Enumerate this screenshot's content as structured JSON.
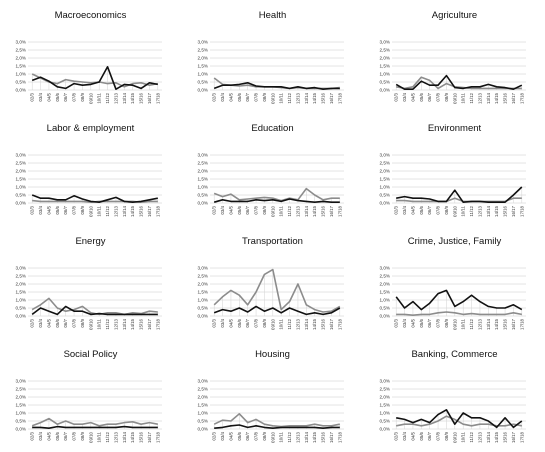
{
  "colors": {
    "series_a": "#111111",
    "series_b": "#8c8c8c",
    "grid": "#c8c8c8",
    "connector": "#d2d2d2"
  },
  "chart_data": [
    {
      "type": "line",
      "title": "Macroeconomics",
      "x": [
        "02/3",
        "03/4",
        "04/5",
        "05/6",
        "06/7",
        "07/8",
        "08/9",
        "09/10",
        "10/11",
        "11/12",
        "12/13",
        "13/14",
        "14/15",
        "15/16",
        "16/17",
        "17/18"
      ],
      "ylim": [
        0,
        3.0
      ],
      "y_ticks": [
        "0,0%",
        "0,5%",
        "1,0%",
        "1,5%",
        "2,0%",
        "2,5%",
        "3,0%"
      ],
      "series": [
        {
          "values": [
            0.6,
            0.8,
            0.55,
            0.2,
            0.1,
            0.4,
            0.3,
            0.35,
            0.5,
            1.45,
            0.05,
            0.35,
            0.3,
            0.1,
            0.45,
            0.35
          ]
        },
        {
          "values": [
            1.0,
            0.75,
            0.5,
            0.4,
            0.65,
            0.55,
            0.5,
            0.45,
            0.5,
            0.4,
            0.45,
            0.2,
            0.4,
            0.45,
            0.3,
            0.4
          ]
        }
      ]
    },
    {
      "type": "line",
      "title": "Health",
      "x": [
        "02/3",
        "03/4",
        "04/5",
        "05/6",
        "06/7",
        "07/8",
        "08/9",
        "09/10",
        "10/11",
        "11/12",
        "12/13",
        "13/14",
        "14/15",
        "15/16",
        "16/17",
        "17/18"
      ],
      "ylim": [
        0,
        3.0
      ],
      "y_ticks": [
        "0,0%",
        "0,5%",
        "1,0%",
        "1,5%",
        "2,0%",
        "2,5%",
        "3,0%"
      ],
      "series": [
        {
          "values": [
            0.1,
            0.3,
            0.3,
            0.35,
            0.45,
            0.25,
            0.2,
            0.2,
            0.2,
            0.1,
            0.2,
            0.1,
            0.15,
            0.05,
            0.1,
            0.1
          ]
        },
        {
          "values": [
            0.75,
            0.35,
            0.3,
            0.25,
            0.3,
            0.2,
            0.2,
            0.2,
            0.15,
            0.1,
            0.15,
            0.1,
            0.1,
            0.1,
            0.1,
            0.15
          ]
        }
      ]
    },
    {
      "type": "line",
      "title": "Agriculture",
      "x": [
        "02/3",
        "03/4",
        "04/5",
        "05/6",
        "06/7",
        "07/8",
        "08/9",
        "09/10",
        "10/11",
        "11/12",
        "12/13",
        "13/14",
        "14/15",
        "15/16",
        "16/17",
        "17/18"
      ],
      "ylim": [
        0,
        3.0
      ],
      "y_ticks": [
        "0,0%",
        "0,5%",
        "1,0%",
        "1,5%",
        "2,0%",
        "2,5%",
        "3,0%"
      ],
      "series": [
        {
          "values": [
            0.35,
            0.05,
            0.05,
            0.55,
            0.3,
            0.3,
            0.9,
            0.15,
            0.1,
            0.2,
            0.2,
            0.35,
            0.2,
            0.15,
            0.05,
            0.3
          ]
        },
        {
          "values": [
            0.2,
            0.1,
            0.2,
            0.8,
            0.6,
            0.1,
            0.4,
            0.2,
            0.15,
            0.1,
            0.1,
            0.1,
            0.1,
            0.1,
            0.1,
            0.1
          ]
        }
      ]
    },
    {
      "type": "line",
      "title": "Labor & employment",
      "x": [
        "02/3",
        "03/4",
        "04/5",
        "05/6",
        "06/7",
        "07/8",
        "08/9",
        "09/10",
        "10/11",
        "11/12",
        "12/13",
        "13/14",
        "14/15",
        "15/16",
        "16/17",
        "17/18"
      ],
      "ylim": [
        0,
        3.0
      ],
      "y_ticks": [
        "0,0%",
        "0,5%",
        "1,0%",
        "1,5%",
        "2,0%",
        "2,5%",
        "3,0%"
      ],
      "series": [
        {
          "values": [
            0.5,
            0.3,
            0.3,
            0.2,
            0.2,
            0.45,
            0.25,
            0.1,
            0.05,
            0.2,
            0.35,
            0.1,
            0.05,
            0.1,
            0.2,
            0.3
          ]
        },
        {
          "values": [
            0.15,
            0.1,
            0.1,
            0.1,
            0.1,
            0.1,
            0.1,
            0.05,
            0.1,
            0.1,
            0.1,
            0.1,
            0.1,
            0.05,
            0.1,
            0.1
          ]
        }
      ]
    },
    {
      "type": "line",
      "title": "Education",
      "x": [
        "02/3",
        "03/4",
        "04/5",
        "05/6",
        "06/7",
        "07/8",
        "08/9",
        "09/10",
        "10/11",
        "11/12",
        "12/13",
        "13/14",
        "14/15",
        "15/16",
        "16/17",
        "17/18"
      ],
      "ylim": [
        0,
        3.0
      ],
      "y_ticks": [
        "0,0%",
        "0,5%",
        "1,0%",
        "1,5%",
        "2,0%",
        "2,5%",
        "3,0%"
      ],
      "series": [
        {
          "values": [
            0.05,
            0.2,
            0.1,
            0.1,
            0.1,
            0.2,
            0.15,
            0.2,
            0.1,
            0.25,
            0.15,
            0.1,
            0.05,
            0.1,
            0.05,
            0.05
          ]
        },
        {
          "values": [
            0.6,
            0.4,
            0.55,
            0.2,
            0.25,
            0.3,
            0.35,
            0.3,
            0.15,
            0.3,
            0.2,
            0.9,
            0.5,
            0.2,
            0.3,
            0.3
          ]
        }
      ]
    },
    {
      "type": "line",
      "title": "Environment",
      "x": [
        "02/3",
        "03/4",
        "04/5",
        "05/6",
        "06/7",
        "07/8",
        "08/9",
        "09/10",
        "10/11",
        "11/12",
        "12/13",
        "13/14",
        "14/15",
        "15/16",
        "16/17",
        "17/18"
      ],
      "ylim": [
        0,
        3.0
      ],
      "y_ticks": [
        "0,0%",
        "0,5%",
        "1,0%",
        "1,5%",
        "2,0%",
        "2,5%",
        "3,0%"
      ],
      "series": [
        {
          "values": [
            0.3,
            0.4,
            0.3,
            0.3,
            0.25,
            0.1,
            0.1,
            0.8,
            0.05,
            0.1,
            0.1,
            0.05,
            0.05,
            0.05,
            0.5,
            1.0
          ]
        },
        {
          "values": [
            0.15,
            0.15,
            0.1,
            0.1,
            0.1,
            0.1,
            0.1,
            0.3,
            0.1,
            0.1,
            0.1,
            0.1,
            0.1,
            0.1,
            0.3,
            0.3
          ]
        }
      ]
    },
    {
      "type": "line",
      "title": "Energy",
      "x": [
        "02/3",
        "03/4",
        "04/5",
        "05/6",
        "06/7",
        "07/8",
        "08/9",
        "09/10",
        "10/11",
        "11/12",
        "12/13",
        "13/14",
        "14/15",
        "15/16",
        "16/17",
        "17/18"
      ],
      "ylim": [
        0,
        3.0
      ],
      "y_ticks": [
        "0,0%",
        "0,5%",
        "1,0%",
        "1,5%",
        "2,0%",
        "2,5%",
        "3,0%"
      ],
      "series": [
        {
          "values": [
            0.1,
            0.5,
            0.3,
            0.1,
            0.6,
            0.3,
            0.3,
            0.1,
            0.15,
            0.1,
            0.1,
            0.1,
            0.1,
            0.1,
            0.1,
            0.1
          ]
        },
        {
          "values": [
            0.4,
            0.7,
            1.1,
            0.5,
            0.3,
            0.4,
            0.6,
            0.2,
            0.1,
            0.2,
            0.2,
            0.1,
            0.2,
            0.15,
            0.3,
            0.25
          ]
        }
      ]
    },
    {
      "type": "line",
      "title": "Transportation",
      "x": [
        "02/3",
        "03/4",
        "04/5",
        "05/6",
        "06/7",
        "07/8",
        "08/9",
        "09/10",
        "10/11",
        "11/12",
        "12/13",
        "13/14",
        "14/15",
        "15/16",
        "16/17",
        "17/18"
      ],
      "ylim": [
        0,
        3.0
      ],
      "y_ticks": [
        "0,0%",
        "0,5%",
        "1,0%",
        "1,5%",
        "2,0%",
        "2,5%",
        "3,0%"
      ],
      "series": [
        {
          "values": [
            0.2,
            0.4,
            0.3,
            0.5,
            0.25,
            0.6,
            0.3,
            0.5,
            0.2,
            0.5,
            0.3,
            0.1,
            0.2,
            0.1,
            0.2,
            0.5
          ]
        },
        {
          "values": [
            0.7,
            1.2,
            1.6,
            1.3,
            0.7,
            1.5,
            2.6,
            2.9,
            0.4,
            0.9,
            2.0,
            0.7,
            0.4,
            0.25,
            0.3,
            0.6
          ]
        }
      ]
    },
    {
      "type": "line",
      "title": "Crime, Justice, Family",
      "x": [
        "02/3",
        "03/4",
        "04/5",
        "05/6",
        "06/7",
        "07/8",
        "08/9",
        "09/10",
        "10/11",
        "11/12",
        "12/13",
        "13/14",
        "14/15",
        "15/16",
        "16/17",
        "17/18"
      ],
      "ylim": [
        0,
        3.0
      ],
      "y_ticks": [
        "0,0%",
        "0,5%",
        "1,0%",
        "1,5%",
        "2,0%",
        "2,5%",
        "3,0%"
      ],
      "series": [
        {
          "values": [
            1.2,
            0.5,
            0.9,
            0.4,
            0.8,
            1.4,
            1.6,
            0.6,
            0.9,
            1.3,
            0.9,
            0.6,
            0.5,
            0.5,
            0.7,
            0.4
          ]
        },
        {
          "values": [
            0.1,
            0.1,
            0.05,
            0.1,
            0.1,
            0.2,
            0.25,
            0.2,
            0.1,
            0.15,
            0.1,
            0.1,
            0.1,
            0.1,
            0.2,
            0.1
          ]
        }
      ]
    },
    {
      "type": "line",
      "title": "Social Policy",
      "x": [
        "02/3",
        "03/4",
        "04/5",
        "05/6",
        "06/7",
        "07/8",
        "08/9",
        "09/10",
        "10/11",
        "11/12",
        "12/13",
        "13/14",
        "14/15",
        "15/16",
        "16/17",
        "17/18"
      ],
      "ylim": [
        0,
        3.0
      ],
      "y_ticks": [
        "0,0%",
        "0,5%",
        "1,0%",
        "1,5%",
        "2,0%",
        "2,5%",
        "3,0%"
      ],
      "series": [
        {
          "values": [
            0.1,
            0.1,
            0.05,
            0.15,
            0.1,
            0.1,
            0.1,
            0.1,
            0.1,
            0.1,
            0.1,
            0.15,
            0.1,
            0.1,
            0.1,
            0.1
          ]
        },
        {
          "values": [
            0.2,
            0.4,
            0.65,
            0.3,
            0.5,
            0.3,
            0.3,
            0.4,
            0.2,
            0.3,
            0.3,
            0.4,
            0.45,
            0.3,
            0.4,
            0.3
          ]
        }
      ]
    },
    {
      "type": "line",
      "title": "Housing",
      "x": [
        "02/3",
        "03/4",
        "04/5",
        "05/6",
        "06/7",
        "07/8",
        "08/9",
        "09/10",
        "10/11",
        "11/12",
        "12/13",
        "13/14",
        "14/15",
        "15/16",
        "16/17",
        "17/18"
      ],
      "ylim": [
        0,
        3.0
      ],
      "y_ticks": [
        "0,0%",
        "0,5%",
        "1,0%",
        "1,5%",
        "2,0%",
        "2,5%",
        "3,0%"
      ],
      "series": [
        {
          "values": [
            0.05,
            0.1,
            0.2,
            0.25,
            0.1,
            0.2,
            0.1,
            0.05,
            0.1,
            0.1,
            0.1,
            0.1,
            0.1,
            0.05,
            0.1,
            0.1
          ]
        },
        {
          "values": [
            0.3,
            0.55,
            0.5,
            0.95,
            0.4,
            0.6,
            0.3,
            0.2,
            0.15,
            0.2,
            0.2,
            0.2,
            0.3,
            0.2,
            0.2,
            0.3
          ]
        }
      ]
    },
    {
      "type": "line",
      "title": "Banking, Commerce",
      "x": [
        "02/3",
        "03/4",
        "04/5",
        "05/6",
        "06/7",
        "07/8",
        "08/9",
        "09/10",
        "10/11",
        "11/12",
        "12/13",
        "13/14",
        "14/15",
        "15/16",
        "16/17",
        "17/18"
      ],
      "ylim": [
        0,
        3.0
      ],
      "y_ticks": [
        "0,0%",
        "0,5%",
        "1,0%",
        "1,5%",
        "2,0%",
        "2,5%",
        "3,0%"
      ],
      "series": [
        {
          "values": [
            0.7,
            0.6,
            0.4,
            0.6,
            0.4,
            0.9,
            1.2,
            0.3,
            1.0,
            0.7,
            0.7,
            0.5,
            0.1,
            0.7,
            0.1,
            0.5
          ]
        },
        {
          "values": [
            0.2,
            0.3,
            0.3,
            0.2,
            0.3,
            0.5,
            0.8,
            0.6,
            0.3,
            0.2,
            0.3,
            0.3,
            0.2,
            0.2,
            0.3,
            0.2
          ]
        }
      ]
    }
  ]
}
